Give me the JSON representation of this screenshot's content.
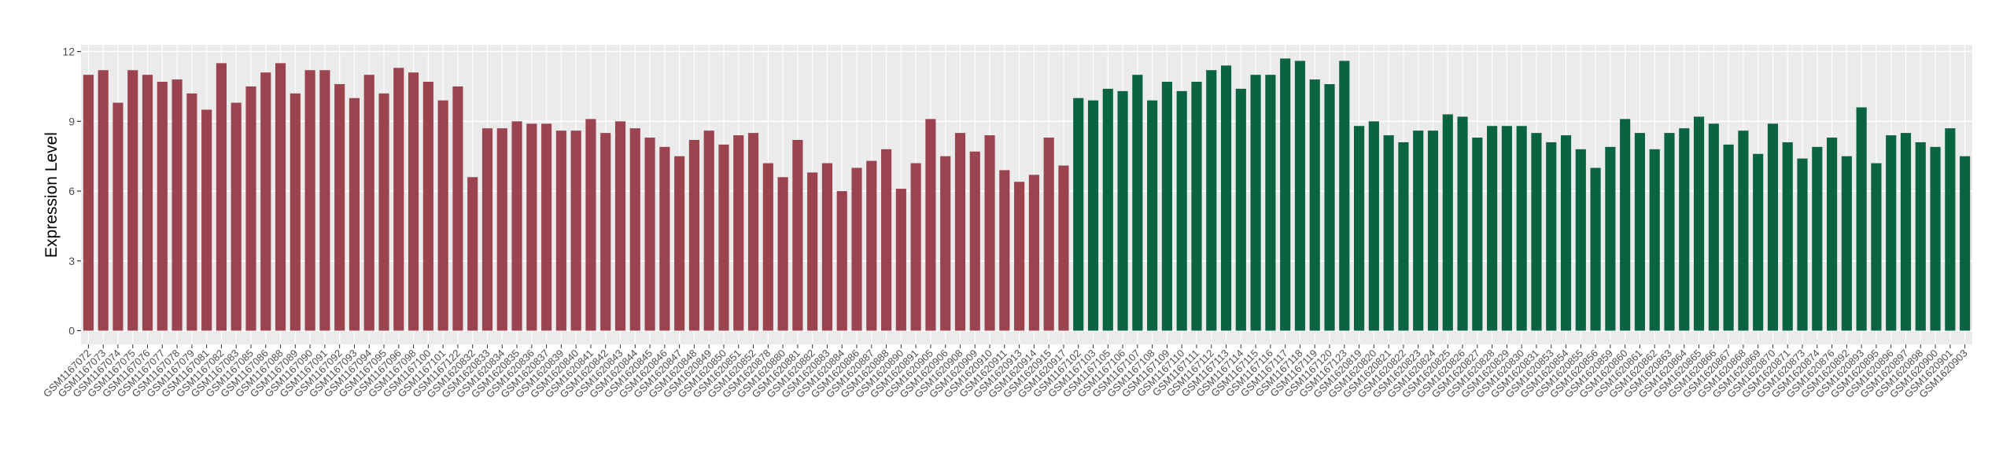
{
  "chart_data": {
    "type": "bar",
    "y_label": "Expression Level",
    "categories": [
      "GSM1167072",
      "GSM1167073",
      "GSM1167074",
      "GSM1167075",
      "GSM1167076",
      "GSM1167077",
      "GSM1167078",
      "GSM1167079",
      "GSM1167081",
      "GSM1167082",
      "GSM1167083",
      "GSM1167085",
      "GSM1167086",
      "GSM1167088",
      "GSM1167089",
      "GSM1167090",
      "GSM1167091",
      "GSM1167092",
      "GSM1167093",
      "GSM1167094",
      "GSM1167095",
      "GSM1167096",
      "GSM1167098",
      "GSM1167100",
      "GSM1167101",
      "GSM1167122",
      "GSM1620832",
      "GSM1620833",
      "GSM1620834",
      "GSM1620835",
      "GSM1620836",
      "GSM1620837",
      "GSM1620839",
      "GSM1620840",
      "GSM1620841",
      "GSM1620842",
      "GSM1620843",
      "GSM1620844",
      "GSM1620845",
      "GSM1620846",
      "GSM1620847",
      "GSM1620848",
      "GSM1620849",
      "GSM1620850",
      "GSM1620851",
      "GSM1620852",
      "GSM1620878",
      "GSM1620880",
      "GSM1620881",
      "GSM1620882",
      "GSM1620883",
      "GSM1620884",
      "GSM1620886",
      "GSM1620887",
      "GSM1620888",
      "GSM1620890",
      "GSM1620891",
      "GSM1620905",
      "GSM1620906",
      "GSM1620908",
      "GSM1620909",
      "GSM1620910",
      "GSM1620911",
      "GSM1620913",
      "GSM1620914",
      "GSM1620915",
      "GSM1620917",
      "GSM1167102",
      "GSM1167103",
      "GSM1167105",
      "GSM1167106",
      "GSM1167107",
      "GSM1167108",
      "GSM1167109",
      "GSM1167110",
      "GSM1167111",
      "GSM1167112",
      "GSM1167113",
      "GSM1167114",
      "GSM1167115",
      "GSM1167116",
      "GSM1167117",
      "GSM1167118",
      "GSM1167119",
      "GSM1167120",
      "GSM1167123",
      "GSM1620819",
      "GSM1620820",
      "GSM1620821",
      "GSM1620822",
      "GSM1620823",
      "GSM1620824",
      "GSM1620825",
      "GSM1620826",
      "GSM1620827",
      "GSM1620828",
      "GSM1620829",
      "GSM1620830",
      "GSM1620831",
      "GSM1620853",
      "GSM1620854",
      "GSM1620855",
      "GSM1620856",
      "GSM1620859",
      "GSM1620860",
      "GSM1620861",
      "GSM1620862",
      "GSM1620863",
      "GSM1620864",
      "GSM1620865",
      "GSM1620866",
      "GSM1620867",
      "GSM1620868",
      "GSM1620869",
      "GSM1620870",
      "GSM1620871",
      "GSM1620873",
      "GSM1620874",
      "GSM1620876",
      "GSM1620892",
      "GSM1620893",
      "GSM1620895",
      "GSM1620896",
      "GSM1620897",
      "GSM1620898",
      "GSM1620900",
      "GSM1620901",
      "GSM1620903"
    ],
    "values": [
      11.0,
      11.2,
      9.8,
      11.2,
      11.0,
      10.7,
      10.8,
      10.2,
      9.5,
      11.5,
      9.8,
      10.5,
      11.1,
      11.5,
      10.2,
      11.2,
      11.2,
      10.6,
      10.0,
      11.0,
      10.2,
      11.3,
      11.1,
      10.7,
      9.9,
      10.5,
      6.6,
      8.7,
      8.7,
      9.0,
      8.9,
      8.9,
      8.6,
      8.6,
      9.1,
      8.5,
      9.0,
      8.7,
      8.3,
      7.9,
      7.5,
      8.2,
      8.6,
      8.0,
      8.4,
      8.5,
      7.2,
      6.6,
      8.2,
      6.8,
      7.2,
      6.0,
      7.0,
      7.3,
      7.8,
      6.1,
      7.2,
      9.1,
      7.5,
      8.5,
      7.7,
      8.4,
      6.9,
      6.4,
      6.7,
      8.3,
      7.1,
      10.0,
      9.9,
      10.4,
      10.3,
      11.0,
      9.9,
      10.7,
      10.3,
      10.7,
      11.2,
      11.4,
      10.4,
      11.0,
      11.0,
      11.7,
      11.6,
      10.8,
      10.6,
      11.6,
      8.8,
      9.0,
      8.4,
      8.1,
      8.6,
      8.6,
      9.3,
      9.2,
      8.3,
      8.8,
      8.8,
      8.8,
      8.5,
      8.1,
      8.4,
      7.8,
      7.0,
      7.9,
      9.1,
      8.5,
      7.8,
      8.5,
      8.7,
      9.2,
      8.9,
      8.0,
      8.6,
      7.6,
      8.9,
      8.1,
      7.4,
      7.9,
      8.3,
      7.5,
      9.6,
      7.2,
      8.4,
      8.5,
      8.1,
      7.9,
      8.7,
      7.5
    ],
    "colors": [
      "#9b4450",
      "#9b4450",
      "#9b4450",
      "#9b4450",
      "#9b4450",
      "#9b4450",
      "#9b4450",
      "#9b4450",
      "#9b4450",
      "#9b4450",
      "#9b4450",
      "#9b4450",
      "#9b4450",
      "#9b4450",
      "#9b4450",
      "#9b4450",
      "#9b4450",
      "#9b4450",
      "#9b4450",
      "#9b4450",
      "#9b4450",
      "#9b4450",
      "#9b4450",
      "#9b4450",
      "#9b4450",
      "#9b4450",
      "#9b4450",
      "#9b4450",
      "#9b4450",
      "#9b4450",
      "#9b4450",
      "#9b4450",
      "#9b4450",
      "#9b4450",
      "#9b4450",
      "#9b4450",
      "#9b4450",
      "#9b4450",
      "#9b4450",
      "#9b4450",
      "#9b4450",
      "#9b4450",
      "#9b4450",
      "#9b4450",
      "#9b4450",
      "#9b4450",
      "#9b4450",
      "#9b4450",
      "#9b4450",
      "#9b4450",
      "#9b4450",
      "#9b4450",
      "#9b4450",
      "#9b4450",
      "#9b4450",
      "#9b4450",
      "#9b4450",
      "#9b4450",
      "#9b4450",
      "#9b4450",
      "#9b4450",
      "#9b4450",
      "#9b4450",
      "#9b4450",
      "#9b4450",
      "#9b4450",
      "#9b4450",
      "#0a6442",
      "#0a6442",
      "#0a6442",
      "#0a6442",
      "#0a6442",
      "#0a6442",
      "#0a6442",
      "#0a6442",
      "#0a6442",
      "#0a6442",
      "#0a6442",
      "#0a6442",
      "#0a6442",
      "#0a6442",
      "#0a6442",
      "#0a6442",
      "#0a6442",
      "#0a6442",
      "#0a6442",
      "#0a6442",
      "#0a6442",
      "#0a6442",
      "#0a6442",
      "#0a6442",
      "#0a6442",
      "#0a6442",
      "#0a6442",
      "#0a6442",
      "#0a6442",
      "#0a6442",
      "#0a6442",
      "#0a6442",
      "#0a6442",
      "#0a6442",
      "#0a6442",
      "#0a6442",
      "#0a6442",
      "#0a6442",
      "#0a6442",
      "#0a6442",
      "#0a6442",
      "#0a6442",
      "#0a6442",
      "#0a6442",
      "#0a6442",
      "#0a6442",
      "#0a6442",
      "#0a6442",
      "#0a6442",
      "#0a6442",
      "#0a6442",
      "#0a6442",
      "#0a6442",
      "#0a6442",
      "#0a6442",
      "#0a6442",
      "#0a6442",
      "#0a6442",
      "#0a6442",
      "#0a6442",
      "#0a6442"
    ],
    "ylim": [
      -0.59,
      12.29
    ],
    "yticks": [
      0,
      3,
      6,
      9,
      12
    ],
    "grid": true
  }
}
